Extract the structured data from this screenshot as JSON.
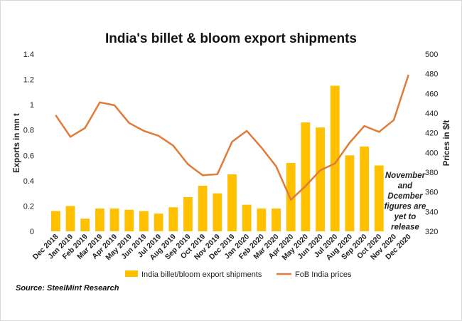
{
  "chart_data": {
    "type": "bar",
    "title": "India's billet & bloom export shipments",
    "categories": [
      "Dec 2018",
      "Jan 2019",
      "Feb 2019",
      "Mar 2019",
      "Apr 2019",
      "May 2019",
      "Jun 2019",
      "Jul 2019",
      "Aug 2019",
      "Sep 2019",
      "Oct 2019",
      "Nov 2019",
      "Dec 2019",
      "Jan 2020",
      "Feb 2020",
      "Mar 2020",
      "Apr 2020",
      "May 2020",
      "Jun 2020",
      "Jul 2020",
      "Aug 2020",
      "Sep 2020",
      "Oct 2020",
      "Nov 2020",
      "Dec 2020"
    ],
    "series": [
      {
        "name": "India billet/bloom export shipments",
        "type": "bar",
        "axis": "left",
        "color": "#FFC000",
        "values": [
          0.16,
          0.2,
          0.1,
          0.18,
          0.18,
          0.17,
          0.16,
          0.14,
          0.19,
          0.27,
          0.36,
          0.3,
          0.45,
          0.21,
          0.18,
          0.18,
          0.54,
          0.86,
          0.82,
          1.15,
          0.6,
          0.67,
          0.52,
          null,
          null
        ]
      },
      {
        "name": "FoB India prices",
        "type": "line",
        "axis": "right",
        "color": "#E07B39",
        "values": [
          438,
          416,
          425,
          451,
          448,
          430,
          422,
          417,
          407,
          388,
          377,
          378,
          411,
          422,
          405,
          386,
          352,
          366,
          382,
          389,
          410,
          427,
          421,
          433,
          479
        ]
      }
    ],
    "ylabel": "Exports in mn t",
    "ylim": [
      0,
      1.4
    ],
    "yticks": [
      "0",
      "0.2",
      "0.4",
      "0.6",
      "0.8",
      "1",
      "1.2",
      "1.4"
    ],
    "y2label": "Prices in $/t",
    "y2lim": [
      320,
      500
    ],
    "y2ticks": [
      "320",
      "340",
      "360",
      "380",
      "400",
      "420",
      "440",
      "460",
      "480",
      "500"
    ],
    "annotation": [
      "November",
      "and",
      "Dcember",
      "figures are",
      "yet to",
      "release"
    ],
    "legend_placement": "bottom",
    "grid": false,
    "source": "Source: SteelMint Research"
  }
}
